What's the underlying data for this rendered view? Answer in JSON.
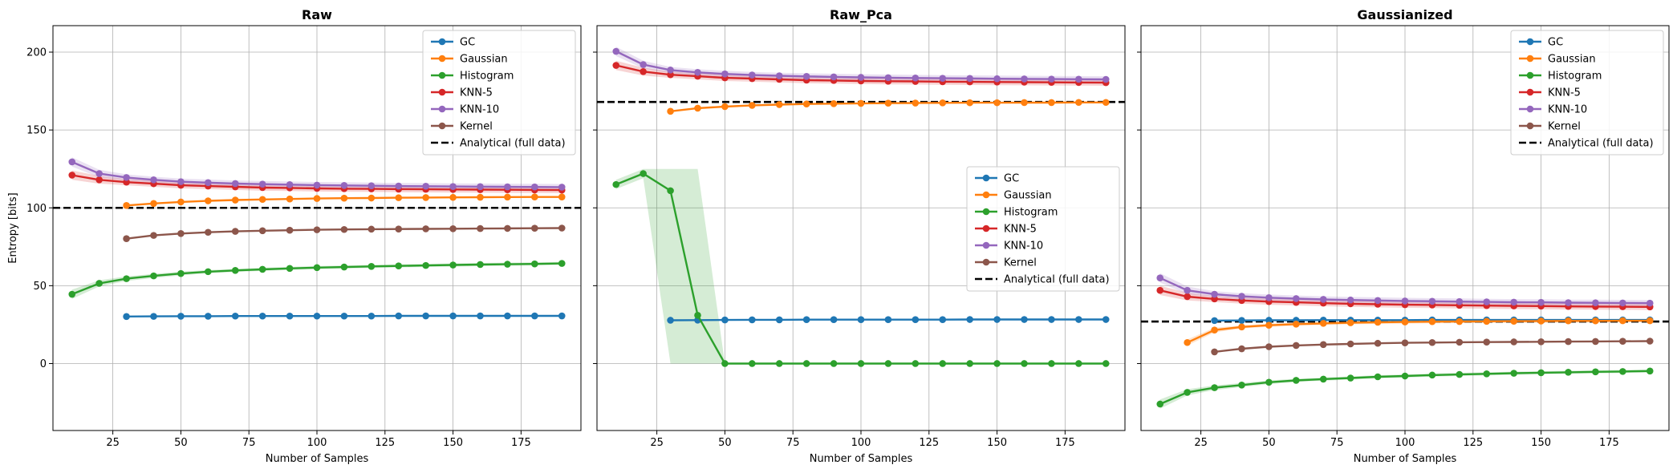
{
  "figure": {
    "ylabel": "Entropy [bits]"
  },
  "chart_data": [
    {
      "type": "line",
      "title": "Raw",
      "xlabel": "Number of Samples",
      "ylabel": "Entropy [bits]",
      "xlim": [
        3,
        197
      ],
      "ylim": [
        -43,
        217
      ],
      "xticks": [
        25,
        50,
        75,
        100,
        125,
        150,
        175
      ],
      "yticks": [
        0,
        50,
        100,
        150,
        200
      ],
      "grid": true,
      "legend": "top-right",
      "reference_line": {
        "name": "Analytical (full data)",
        "y": 100
      },
      "series": [
        {
          "name": "GC",
          "color": "#1f77b4",
          "x": [
            30,
            40,
            50,
            60,
            70,
            80,
            90,
            100,
            110,
            120,
            130,
            140,
            150,
            160,
            170,
            180,
            190
          ],
          "y": [
            30.2,
            30.3,
            30.4,
            30.4,
            30.5,
            30.5,
            30.5,
            30.5,
            30.5,
            30.5,
            30.6,
            30.6,
            30.6,
            30.6,
            30.6,
            30.6,
            30.6
          ]
        },
        {
          "name": "Gaussian",
          "color": "#ff7f0e",
          "x": [
            30,
            40,
            50,
            60,
            70,
            80,
            90,
            100,
            110,
            120,
            130,
            140,
            150,
            160,
            170,
            180,
            190
          ],
          "y": [
            101.5,
            102.8,
            103.8,
            104.5,
            105.0,
            105.4,
            105.7,
            106.0,
            106.2,
            106.3,
            106.5,
            106.6,
            106.7,
            106.8,
            106.9,
            107.0,
            107.0
          ]
        },
        {
          "name": "Histogram",
          "color": "#2ca02c",
          "x": [
            10,
            20,
            30,
            40,
            50,
            60,
            70,
            80,
            90,
            100,
            110,
            120,
            130,
            140,
            150,
            160,
            170,
            180,
            190
          ],
          "y": [
            44.5,
            51.5,
            54.5,
            56.3,
            57.8,
            59.0,
            59.8,
            60.5,
            61.1,
            61.6,
            62.0,
            62.4,
            62.7,
            63.0,
            63.3,
            63.6,
            63.8,
            64.0,
            64.3
          ],
          "band": [
            3,
            2,
            1.5,
            1.3,
            1.2,
            1,
            1,
            1,
            1,
            1,
            1,
            1,
            1,
            1,
            1,
            1,
            1,
            1,
            1
          ]
        },
        {
          "name": "KNN-5",
          "color": "#d62728",
          "x": [
            10,
            20,
            30,
            40,
            50,
            60,
            70,
            80,
            90,
            100,
            110,
            120,
            130,
            140,
            150,
            160,
            170,
            180,
            190
          ],
          "y": [
            121,
            118,
            116.5,
            115.5,
            114.5,
            114,
            113.5,
            113,
            112.8,
            112.5,
            112.3,
            112.2,
            112,
            111.9,
            111.8,
            111.7,
            111.6,
            111.5,
            111.4
          ],
          "band": [
            3,
            2.5,
            2,
            2,
            2,
            2,
            2,
            2,
            2,
            2,
            2,
            2,
            2,
            2,
            2,
            2,
            2,
            2,
            2
          ]
        },
        {
          "name": "KNN-10",
          "color": "#9467bd",
          "x": [
            10,
            20,
            30,
            40,
            50,
            60,
            70,
            80,
            90,
            100,
            110,
            120,
            130,
            140,
            150,
            160,
            170,
            180,
            190
          ],
          "y": [
            129.5,
            122,
            119.5,
            118,
            116.8,
            116.2,
            115.6,
            115.2,
            114.9,
            114.6,
            114.4,
            114.2,
            114,
            113.9,
            113.7,
            113.6,
            113.5,
            113.4,
            113.3
          ],
          "band": [
            3,
            2.5,
            2,
            2,
            2,
            2,
            2,
            2,
            2,
            2,
            2,
            2,
            2,
            2,
            2,
            2,
            2,
            2,
            2
          ]
        },
        {
          "name": "Kernel",
          "color": "#8c564b",
          "x": [
            30,
            40,
            50,
            60,
            70,
            80,
            90,
            100,
            110,
            120,
            130,
            140,
            150,
            160,
            170,
            180,
            190
          ],
          "y": [
            80.2,
            82.3,
            83.5,
            84.3,
            84.9,
            85.3,
            85.6,
            85.9,
            86.1,
            86.3,
            86.4,
            86.5,
            86.6,
            86.7,
            86.8,
            86.9,
            87.0
          ]
        }
      ]
    },
    {
      "type": "line",
      "title": "Raw_Pca",
      "xlabel": "Number of Samples",
      "ylabel": "",
      "xlim": [
        3,
        197
      ],
      "ylim": [
        -43,
        217
      ],
      "xticks": [
        25,
        50,
        75,
        100,
        125,
        150,
        175
      ],
      "yticks": [
        0,
        50,
        100,
        150,
        200
      ],
      "grid": true,
      "legend": "center-right",
      "reference_line": {
        "name": "Analytical (full data)",
        "y": 168
      },
      "series": [
        {
          "name": "GC",
          "color": "#1f77b4",
          "x": [
            30,
            40,
            50,
            60,
            70,
            80,
            90,
            100,
            110,
            120,
            130,
            140,
            150,
            160,
            170,
            180,
            190
          ],
          "y": [
            27.8,
            27.9,
            28.0,
            28.1,
            28.1,
            28.2,
            28.2,
            28.2,
            28.2,
            28.2,
            28.2,
            28.3,
            28.3,
            28.3,
            28.3,
            28.3,
            28.3
          ]
        },
        {
          "name": "Gaussian",
          "color": "#ff7f0e",
          "x": [
            30,
            40,
            50,
            60,
            70,
            80,
            90,
            100,
            110,
            120,
            130,
            140,
            150,
            160,
            170,
            180,
            190
          ],
          "y": [
            162,
            164,
            165,
            165.8,
            166.3,
            166.7,
            166.9,
            167.1,
            167.2,
            167.3,
            167.4,
            167.5,
            167.5,
            167.6,
            167.6,
            167.7,
            167.7
          ]
        },
        {
          "name": "Histogram",
          "color": "#2ca02c",
          "x": [
            10,
            20,
            30,
            40,
            50,
            60,
            70,
            80,
            90,
            100,
            110,
            120,
            130,
            140,
            150,
            160,
            170,
            180,
            190
          ],
          "y": [
            115,
            122,
            111,
            31,
            0,
            0,
            0,
            0,
            0,
            0,
            0,
            0,
            0,
            0,
            0,
            0,
            0,
            0,
            0
          ],
          "band_low": [
            112,
            119,
            0,
            0,
            0,
            0,
            0,
            0,
            0,
            0,
            0,
            0,
            0,
            0,
            0,
            0,
            0,
            0,
            0
          ],
          "band_high": [
            118,
            125,
            125,
            125,
            0,
            0,
            0,
            0,
            0,
            0,
            0,
            0,
            0,
            0,
            0,
            0,
            0,
            0,
            0
          ]
        },
        {
          "name": "KNN-5",
          "color": "#d62728",
          "x": [
            10,
            20,
            30,
            40,
            50,
            60,
            70,
            80,
            90,
            100,
            110,
            120,
            130,
            140,
            150,
            160,
            170,
            180,
            190
          ],
          "y": [
            191.5,
            187.5,
            185.5,
            184.5,
            183.5,
            183,
            182.5,
            182,
            181.8,
            181.5,
            181.3,
            181.2,
            181,
            180.9,
            180.8,
            180.7,
            180.6,
            180.5,
            180.4
          ],
          "band": [
            3,
            2.5,
            2,
            2,
            2,
            2,
            2,
            2,
            2,
            2,
            2,
            2,
            2,
            2,
            2,
            2,
            2,
            2,
            2
          ]
        },
        {
          "name": "KNN-10",
          "color": "#9467bd",
          "x": [
            10,
            20,
            30,
            40,
            50,
            60,
            70,
            80,
            90,
            100,
            110,
            120,
            130,
            140,
            150,
            160,
            170,
            180,
            190
          ],
          "y": [
            200.5,
            192,
            188.5,
            187,
            186,
            185.3,
            184.8,
            184.4,
            184.1,
            183.8,
            183.6,
            183.4,
            183.2,
            183.1,
            182.9,
            182.8,
            182.7,
            182.6,
            182.5
          ],
          "band": [
            3,
            2.5,
            2,
            2,
            2,
            2,
            2,
            2,
            2,
            2,
            2,
            2,
            2,
            2,
            2,
            2,
            2,
            2,
            2
          ]
        },
        {
          "name": "Kernel",
          "color": "#8c564b",
          "x": [],
          "y": []
        }
      ]
    },
    {
      "type": "line",
      "title": "Gaussianized",
      "xlabel": "Number of Samples",
      "ylabel": "",
      "xlim": [
        3,
        197
      ],
      "ylim": [
        -43,
        217
      ],
      "xticks": [
        25,
        50,
        75,
        100,
        125,
        150,
        175
      ],
      "yticks": [
        0,
        50,
        100,
        150,
        200
      ],
      "grid": true,
      "legend": "top-right",
      "reference_line": {
        "name": "Analytical (full data)",
        "y": 27
      },
      "series": [
        {
          "name": "GC",
          "color": "#1f77b4",
          "x": [
            30,
            40,
            50,
            60,
            70,
            80,
            90,
            100,
            110,
            120,
            130,
            140,
            150,
            160,
            170,
            180,
            190
          ],
          "y": [
            27.6,
            27.7,
            27.8,
            27.8,
            27.9,
            27.9,
            27.9,
            27.9,
            28.0,
            28.0,
            28.0,
            28.0,
            28.0,
            28.0,
            28.0,
            28.0,
            28.0
          ]
        },
        {
          "name": "Gaussian",
          "color": "#ff7f0e",
          "x": [
            20,
            30,
            40,
            50,
            60,
            70,
            80,
            90,
            100,
            110,
            120,
            130,
            140,
            150,
            160,
            170,
            180,
            190
          ],
          "y": [
            13.5,
            21.5,
            23.5,
            24.6,
            25.3,
            25.8,
            26.2,
            26.5,
            26.7,
            26.9,
            27.0,
            27.1,
            27.2,
            27.3,
            27.4,
            27.4,
            27.5,
            27.5
          ],
          "band": [
            2,
            1.5,
            1,
            1,
            1,
            1,
            1,
            1,
            1,
            1,
            1,
            1,
            1,
            1,
            1,
            1,
            1,
            1
          ]
        },
        {
          "name": "Histogram",
          "color": "#2ca02c",
          "x": [
            10,
            20,
            30,
            40,
            50,
            60,
            70,
            80,
            90,
            100,
            110,
            120,
            130,
            140,
            150,
            160,
            170,
            180,
            190
          ],
          "y": [
            -26,
            -18.5,
            -15.5,
            -13.8,
            -12,
            -10.8,
            -10,
            -9.3,
            -8.5,
            -8,
            -7.4,
            -7,
            -6.6,
            -6.2,
            -5.9,
            -5.6,
            -5.3,
            -5.1,
            -4.8
          ],
          "band": [
            3,
            2,
            1.5,
            1.3,
            1.2,
            1,
            1,
            1,
            1,
            1,
            1,
            1,
            1,
            1,
            1,
            1,
            1,
            1,
            1
          ]
        },
        {
          "name": "KNN-5",
          "color": "#d62728",
          "x": [
            10,
            20,
            30,
            40,
            50,
            60,
            70,
            80,
            90,
            100,
            110,
            120,
            130,
            140,
            150,
            160,
            170,
            180,
            190
          ],
          "y": [
            47,
            43,
            41.5,
            40.5,
            39.8,
            39.3,
            38.8,
            38.4,
            38.1,
            37.8,
            37.6,
            37.4,
            37.2,
            37,
            36.9,
            36.7,
            36.6,
            36.5,
            36.4
          ],
          "band": [
            3,
            2.5,
            2,
            2,
            2,
            2,
            2,
            2,
            2,
            2,
            2,
            2,
            2,
            2,
            2,
            2,
            2,
            2,
            2
          ]
        },
        {
          "name": "KNN-10",
          "color": "#9467bd",
          "x": [
            10,
            20,
            30,
            40,
            50,
            60,
            70,
            80,
            90,
            100,
            110,
            120,
            130,
            140,
            150,
            160,
            170,
            180,
            190
          ],
          "y": [
            55,
            47,
            44.5,
            43.2,
            42.3,
            41.7,
            41.2,
            40.8,
            40.5,
            40.2,
            40,
            39.8,
            39.6,
            39.4,
            39.3,
            39.1,
            39,
            38.9,
            38.8
          ],
          "band": [
            3,
            2.5,
            2,
            2,
            2,
            2,
            2,
            2,
            2,
            2,
            2,
            2,
            2,
            2,
            2,
            2,
            2,
            2,
            2
          ]
        },
        {
          "name": "Kernel",
          "color": "#8c564b",
          "x": [
            30,
            40,
            50,
            60,
            70,
            80,
            90,
            100,
            110,
            120,
            130,
            140,
            150,
            160,
            170,
            180,
            190
          ],
          "y": [
            7.5,
            9.5,
            10.8,
            11.6,
            12.2,
            12.6,
            13.0,
            13.3,
            13.5,
            13.7,
            13.8,
            13.9,
            14.0,
            14.1,
            14.2,
            14.3,
            14.4
          ]
        }
      ]
    }
  ]
}
